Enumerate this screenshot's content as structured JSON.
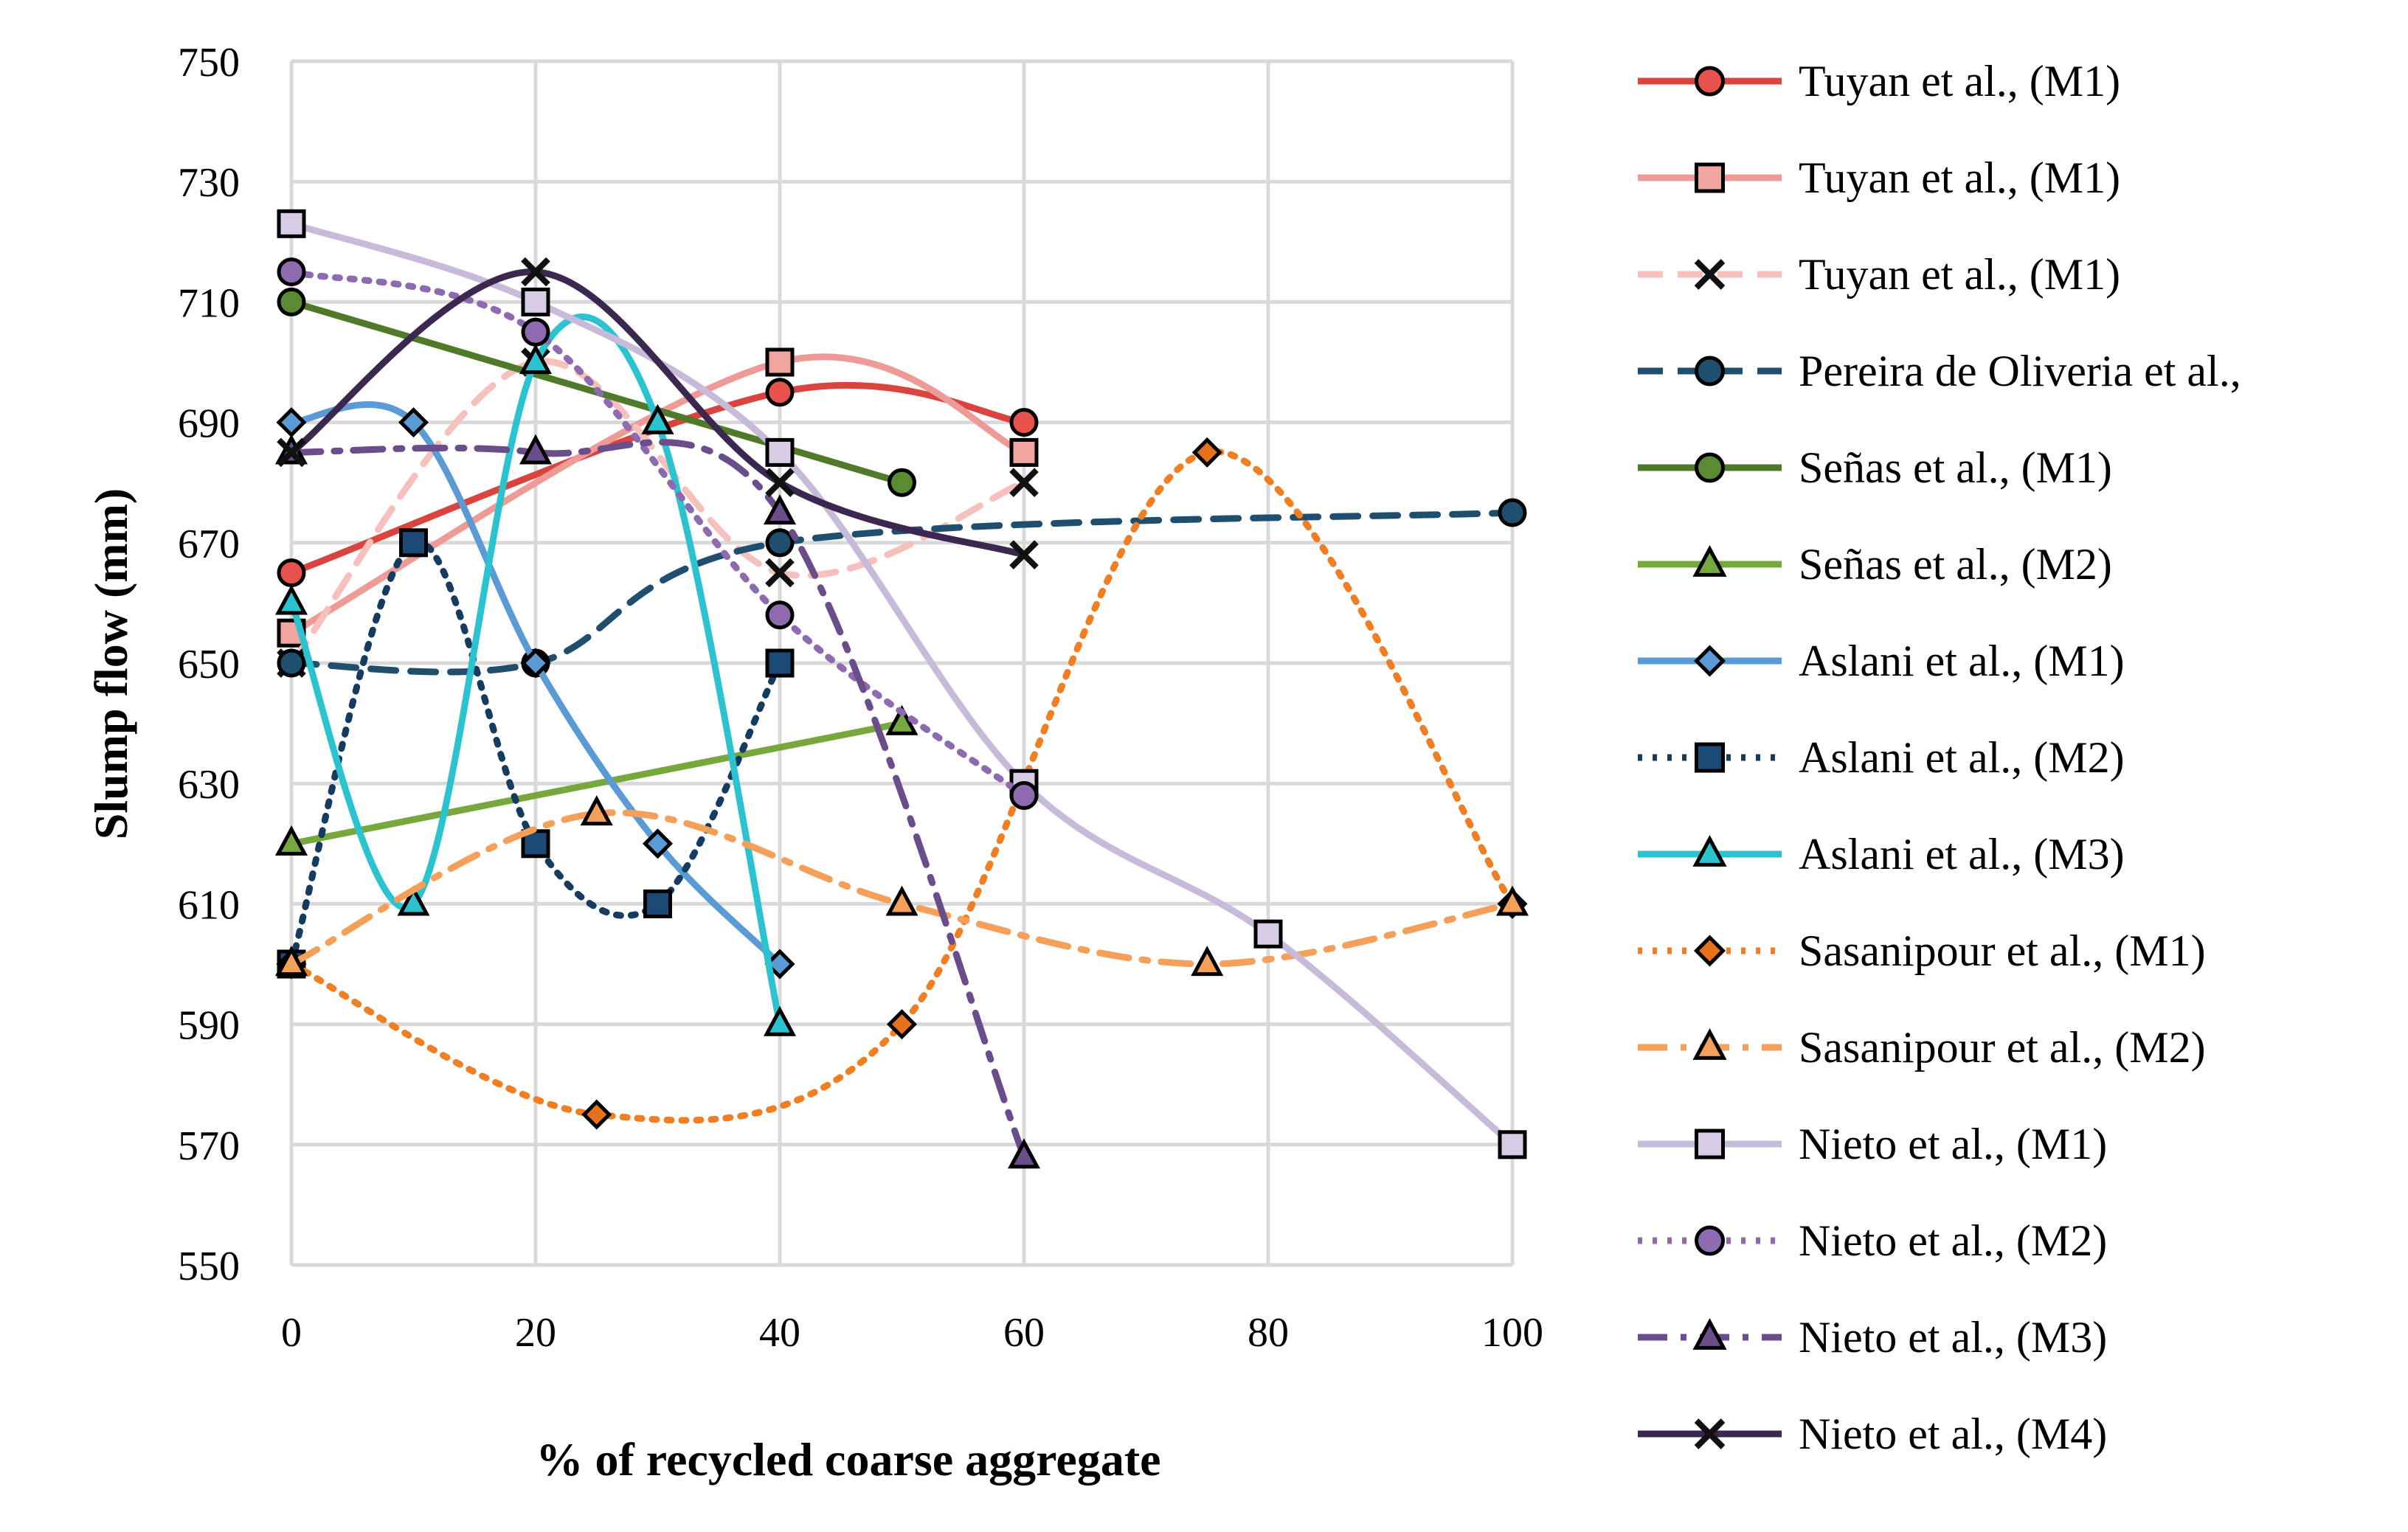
{
  "chart_data": {
    "type": "line",
    "title": "",
    "xlabel": "% of recycled coarse aggregate",
    "ylabel": "Slump flow (mm)",
    "xlim": [
      0,
      100
    ],
    "ylim": [
      550,
      750
    ],
    "x_ticks": [
      "0",
      "20",
      "40",
      "60",
      "80",
      "100"
    ],
    "y_ticks": [
      "550",
      "570",
      "590",
      "610",
      "630",
      "650",
      "670",
      "690",
      "710",
      "730",
      "750"
    ],
    "grid": true,
    "legend_position": "right",
    "series": [
      {
        "name": "Tuyan et al., (M1)",
        "color": "#d9443f",
        "line": "solid",
        "marker": "circle",
        "marker_fill": "#e8524d",
        "x": [
          0,
          40,
          60
        ],
        "y": [
          665,
          695,
          690
        ]
      },
      {
        "name": "Tuyan et al., (M1)",
        "color": "#ee9a96",
        "line": "solid",
        "marker": "square",
        "marker_fill": "#f1a5a0",
        "x": [
          0,
          40,
          60
        ],
        "y": [
          655,
          700,
          685
        ]
      },
      {
        "name": "Tuyan et al., (M1)",
        "color": "#f6c0bc",
        "line": "dash",
        "marker": "x",
        "marker_fill": "#222222",
        "x": [
          0,
          20,
          40,
          60
        ],
        "y": [
          650,
          700,
          665,
          680
        ]
      },
      {
        "name": "Pereira de Oliveria et al.,",
        "color": "#1f4e6e",
        "line": "dash",
        "marker": "circle",
        "marker_fill": "#1f4e6e",
        "x": [
          0,
          20,
          40,
          100
        ],
        "y": [
          650,
          650,
          670,
          675
        ]
      },
      {
        "name": "Señas et al., (M1)",
        "color": "#4f7a2a",
        "line": "solid",
        "marker": "circle",
        "marker_fill": "#5a8a34",
        "x": [
          0,
          50
        ],
        "y": [
          710,
          680
        ]
      },
      {
        "name": "Señas et al., (M2)",
        "color": "#77a83e",
        "line": "solid",
        "marker": "triangle",
        "marker_fill": "#77a83e",
        "x": [
          0,
          50
        ],
        "y": [
          620,
          640
        ]
      },
      {
        "name": "Aslani et al., (M1)",
        "color": "#5b9bd5",
        "line": "solid",
        "marker": "diamond",
        "marker_fill": "#5b9bd5",
        "x": [
          0,
          10,
          20,
          30,
          40
        ],
        "y": [
          690,
          690,
          650,
          620,
          600
        ]
      },
      {
        "name": "Aslani et al., (M2)",
        "color": "#163b60",
        "line": "dot",
        "marker": "square",
        "marker_fill": "#1c4a76",
        "x": [
          0,
          10,
          20,
          30,
          40
        ],
        "y": [
          600,
          670,
          620,
          610,
          650
        ]
      },
      {
        "name": "Aslani et al., (M3)",
        "color": "#2cc3d0",
        "line": "solid",
        "marker": "triangle",
        "marker_fill": "#2cc3d0",
        "x": [
          0,
          10,
          20,
          30,
          40
        ],
        "y": [
          660,
          610,
          700,
          690,
          590
        ]
      },
      {
        "name": "Sasanipour et al., (M1)",
        "color": "#f07f23",
        "line": "dot",
        "marker": "diamond",
        "marker_fill": "#e8721c",
        "x": [
          0,
          25,
          50,
          75,
          100
        ],
        "y": [
          600,
          575,
          590,
          685,
          610
        ]
      },
      {
        "name": "Sasanipour et al., (M2)",
        "color": "#f5a05a",
        "line": "dashdot",
        "marker": "triangle",
        "marker_fill": "#f5a05a",
        "x": [
          0,
          25,
          50,
          75,
          100
        ],
        "y": [
          600,
          625,
          610,
          600,
          610
        ]
      },
      {
        "name": "Nieto et al., (M1)",
        "color": "#c8bad9",
        "line": "solid",
        "marker": "square",
        "marker_fill": "#d7cbe6",
        "x": [
          0,
          20,
          40,
          60,
          80,
          100
        ],
        "y": [
          723,
          710,
          685,
          630,
          605,
          570
        ]
      },
      {
        "name": "Nieto et al., (M2)",
        "color": "#8e6bb0",
        "line": "dot",
        "marker": "circle",
        "marker_fill": "#8e6bb0",
        "x": [
          0,
          20,
          40,
          60
        ],
        "y": [
          715,
          705,
          658,
          628
        ]
      },
      {
        "name": "Nieto et al., (M3)",
        "color": "#6b4d8c",
        "line": "dashdot",
        "marker": "triangle",
        "marker_fill": "#6b4d8c",
        "x": [
          0,
          20,
          40,
          60
        ],
        "y": [
          685,
          685,
          675,
          568
        ]
      },
      {
        "name": "Nieto et al., (M4)",
        "color": "#3c2750",
        "line": "solid",
        "marker": "x",
        "marker_fill": "#222222",
        "x": [
          0,
          20,
          40,
          60
        ],
        "y": [
          685,
          715,
          680,
          668
        ]
      }
    ]
  }
}
